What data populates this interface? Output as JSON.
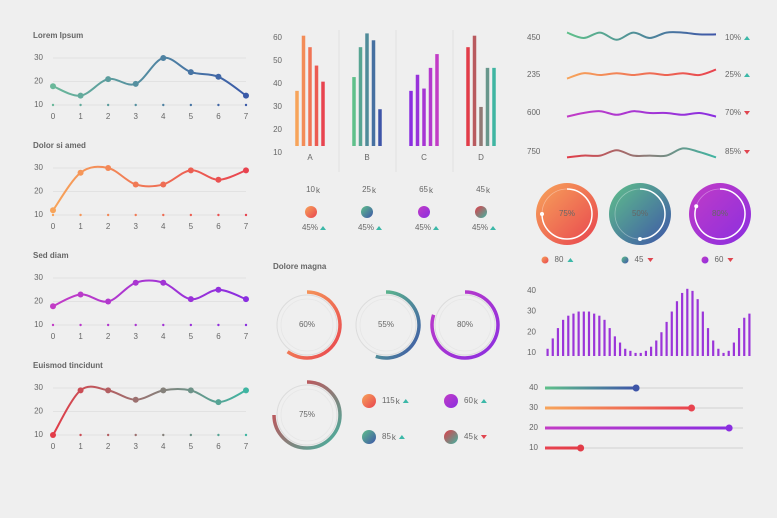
{
  "chart_data": [
    {
      "type": "line",
      "title": "Lorem Ipsum",
      "x": [
        0,
        1,
        2,
        3,
        4,
        5,
        6,
        7
      ],
      "values": [
        18,
        14,
        21,
        19,
        30,
        24,
        22,
        14
      ],
      "colors": [
        "#6ab89a",
        "#3a5aa8"
      ],
      "xlim": [
        0,
        7
      ],
      "xticks": [
        0,
        1,
        2,
        3,
        4,
        5,
        6,
        7
      ],
      "ylim": [
        10,
        35
      ],
      "yticks": [
        10,
        20,
        30
      ],
      "grid": true
    },
    {
      "type": "line",
      "title": "Dolor si amed",
      "x": [
        0,
        1,
        2,
        3,
        4,
        5,
        6,
        7
      ],
      "values": [
        12,
        28,
        30,
        23,
        23,
        29,
        25,
        29
      ],
      "colors": [
        "#f7a45a",
        "#e8434f"
      ],
      "xlim": [
        0,
        7
      ],
      "xticks": [
        0,
        1,
        2,
        3,
        4,
        5,
        6,
        7
      ],
      "ylim": [
        10,
        35
      ],
      "yticks": [
        10,
        20,
        30
      ],
      "grid": true
    },
    {
      "type": "line",
      "title": "Sed diam",
      "x": [
        0,
        1,
        2,
        3,
        4,
        5,
        6,
        7
      ],
      "values": [
        18,
        23,
        20,
        28,
        28,
        21,
        25,
        21
      ],
      "colors": [
        "#c23cc6",
        "#8a2ee0"
      ],
      "xlim": [
        0,
        7
      ],
      "xticks": [
        0,
        1,
        2,
        3,
        4,
        5,
        6,
        7
      ],
      "ylim": [
        10,
        35
      ],
      "yticks": [
        10,
        20,
        30
      ],
      "grid": true
    },
    {
      "type": "line",
      "title": "Euismod tincidunt",
      "x": [
        0,
        1,
        2,
        3,
        4,
        5,
        6,
        7
      ],
      "values": [
        10,
        29,
        29,
        25,
        29,
        29,
        24,
        29
      ],
      "colors": [
        "#e23c48",
        "#3fb5a2"
      ],
      "xlim": [
        0,
        7
      ],
      "xticks": [
        0,
        1,
        2,
        3,
        4,
        5,
        6,
        7
      ],
      "ylim": [
        10,
        35
      ],
      "yticks": [
        10,
        20,
        30
      ],
      "grid": true
    },
    {
      "type": "groupedbar",
      "categories": [
        "A",
        "B",
        "C",
        "D"
      ],
      "values": [
        [
          37,
          61,
          56,
          48,
          41
        ],
        [
          43,
          56,
          62,
          59,
          29
        ],
        [
          37,
          44,
          38,
          47,
          53
        ],
        [
          56,
          61,
          30,
          47,
          47
        ]
      ],
      "colors": [
        [
          "#f7a45a",
          "#e8434f"
        ],
        [
          "#5fc08a",
          "#3e55a8"
        ],
        [
          "#8a2ee0",
          "#c23cc6"
        ],
        [
          "#e23c48",
          "#3fb5a2"
        ]
      ],
      "ylim": [
        13,
        65
      ],
      "yticks": [
        10,
        20,
        30,
        40,
        50,
        60
      ]
    },
    {
      "type": "stat",
      "items": [
        {
          "value": "10",
          "unit": "k",
          "change": "45%",
          "trend": "up",
          "colors": [
            "#f7a45a",
            "#e8434f"
          ]
        },
        {
          "value": "25",
          "unit": "k",
          "change": "45%",
          "trend": "up",
          "colors": [
            "#5fc08a",
            "#3e55a8"
          ]
        },
        {
          "value": "65",
          "unit": "k",
          "change": "45%",
          "trend": "up",
          "colors": [
            "#c23cc6",
            "#8a2ee0"
          ]
        },
        {
          "value": "45",
          "unit": "k",
          "change": "45%",
          "trend": "up",
          "colors": [
            "#e23c48",
            "#3fb5a2"
          ]
        }
      ]
    },
    {
      "type": "donut",
      "title": "Dolore magna",
      "items": [
        {
          "value": 60,
          "label": "60%",
          "colors": [
            "#f7a45a",
            "#e8434f"
          ]
        },
        {
          "value": 55,
          "label": "55%",
          "colors": [
            "#5fc08a",
            "#3e55a8"
          ]
        },
        {
          "value": 80,
          "label": "80%",
          "colors": [
            "#c23cc6",
            "#8a2ee0"
          ]
        },
        {
          "value": 75,
          "label": "75%",
          "colors": [
            "#e23c48",
            "#3fb5a2"
          ]
        }
      ]
    },
    {
      "type": "stat",
      "items": [
        {
          "value": "115",
          "unit": "k",
          "trend": "up",
          "colors": [
            "#f7a45a",
            "#e8434f"
          ]
        },
        {
          "value": "60",
          "unit": "k",
          "trend": "up",
          "colors": [
            "#c23cc6",
            "#8a2ee0"
          ]
        },
        {
          "value": "85",
          "unit": "k",
          "trend": "up",
          "colors": [
            "#5fc08a",
            "#3e55a8"
          ]
        },
        {
          "value": "45",
          "unit": "k",
          "trend": "down",
          "colors": [
            "#e23c48",
            "#3fb5a2"
          ]
        }
      ]
    },
    {
      "type": "sparkline",
      "ylim": [
        0,
        10
      ],
      "items": [
        {
          "value": "450",
          "values": [
            8,
            5,
            8,
            4,
            8,
            5,
            8,
            8,
            7,
            7
          ],
          "change": "10%",
          "trend": "up",
          "colors": [
            "#5fc08a",
            "#3e55a8"
          ]
        },
        {
          "value": "235",
          "values": [
            3,
            6,
            5,
            6,
            5,
            6,
            5,
            6,
            5,
            8
          ],
          "change": "25%",
          "trend": "up",
          "colors": [
            "#f7a45a",
            "#e8434f"
          ]
        },
        {
          "value": "600",
          "values": [
            3,
            5,
            6,
            4,
            6,
            5,
            5,
            4,
            5,
            3
          ],
          "change": "70%",
          "trend": "down",
          "colors": [
            "#c23cc6",
            "#8a2ee0"
          ]
        },
        {
          "value": "750",
          "values": [
            2,
            3,
            3,
            6,
            3,
            3,
            3,
            7,
            5,
            2
          ],
          "change": "85%",
          "trend": "down",
          "colors": [
            "#e23c48",
            "#3fb5a2"
          ]
        }
      ]
    },
    {
      "type": "gauge",
      "items": [
        {
          "value": 75,
          "label": "75%",
          "colors": [
            "#f7a45a",
            "#e8434f"
          ]
        },
        {
          "value": 50,
          "label": "50%",
          "colors": [
            "#5fc08a",
            "#3e55a8"
          ]
        },
        {
          "value": 80,
          "label": "80%",
          "colors": [
            "#c23cc6",
            "#8a2ee0"
          ]
        }
      ]
    },
    {
      "type": "stat",
      "items": [
        {
          "value": "80",
          "trend": "up",
          "colors": [
            "#f7a45a",
            "#e8434f"
          ]
        },
        {
          "value": "45",
          "trend": "down",
          "colors": [
            "#5fc08a",
            "#3e55a8"
          ]
        },
        {
          "value": "60",
          "trend": "down",
          "colors": [
            "#c23cc6",
            "#8a2ee0"
          ]
        }
      ]
    },
    {
      "type": "bar",
      "values": [
        12,
        17,
        22,
        26,
        28,
        29,
        30,
        30,
        30,
        29,
        28,
        26,
        22,
        18,
        15,
        12,
        11,
        10,
        10,
        11,
        13,
        16,
        20,
        25,
        30,
        35,
        39,
        41,
        40,
        36,
        30,
        22,
        16,
        12,
        10,
        11,
        15,
        22,
        27,
        29
      ],
      "color": "#9b35d9",
      "ylim": [
        8.5,
        44
      ],
      "yticks": [
        10,
        20,
        30,
        40
      ]
    },
    {
      "type": "progress",
      "categories": [
        "40",
        "30",
        "20",
        "10"
      ],
      "values": [
        46,
        74,
        93,
        18
      ],
      "xlim": [
        0,
        100
      ],
      "colors": [
        [
          "#5fc08a",
          "#3e55a8"
        ],
        [
          "#f7a45a",
          "#e8434f"
        ],
        [
          "#c23cc6",
          "#8a2ee0"
        ],
        [
          "#e8434f",
          "#e23c48"
        ]
      ]
    }
  ]
}
